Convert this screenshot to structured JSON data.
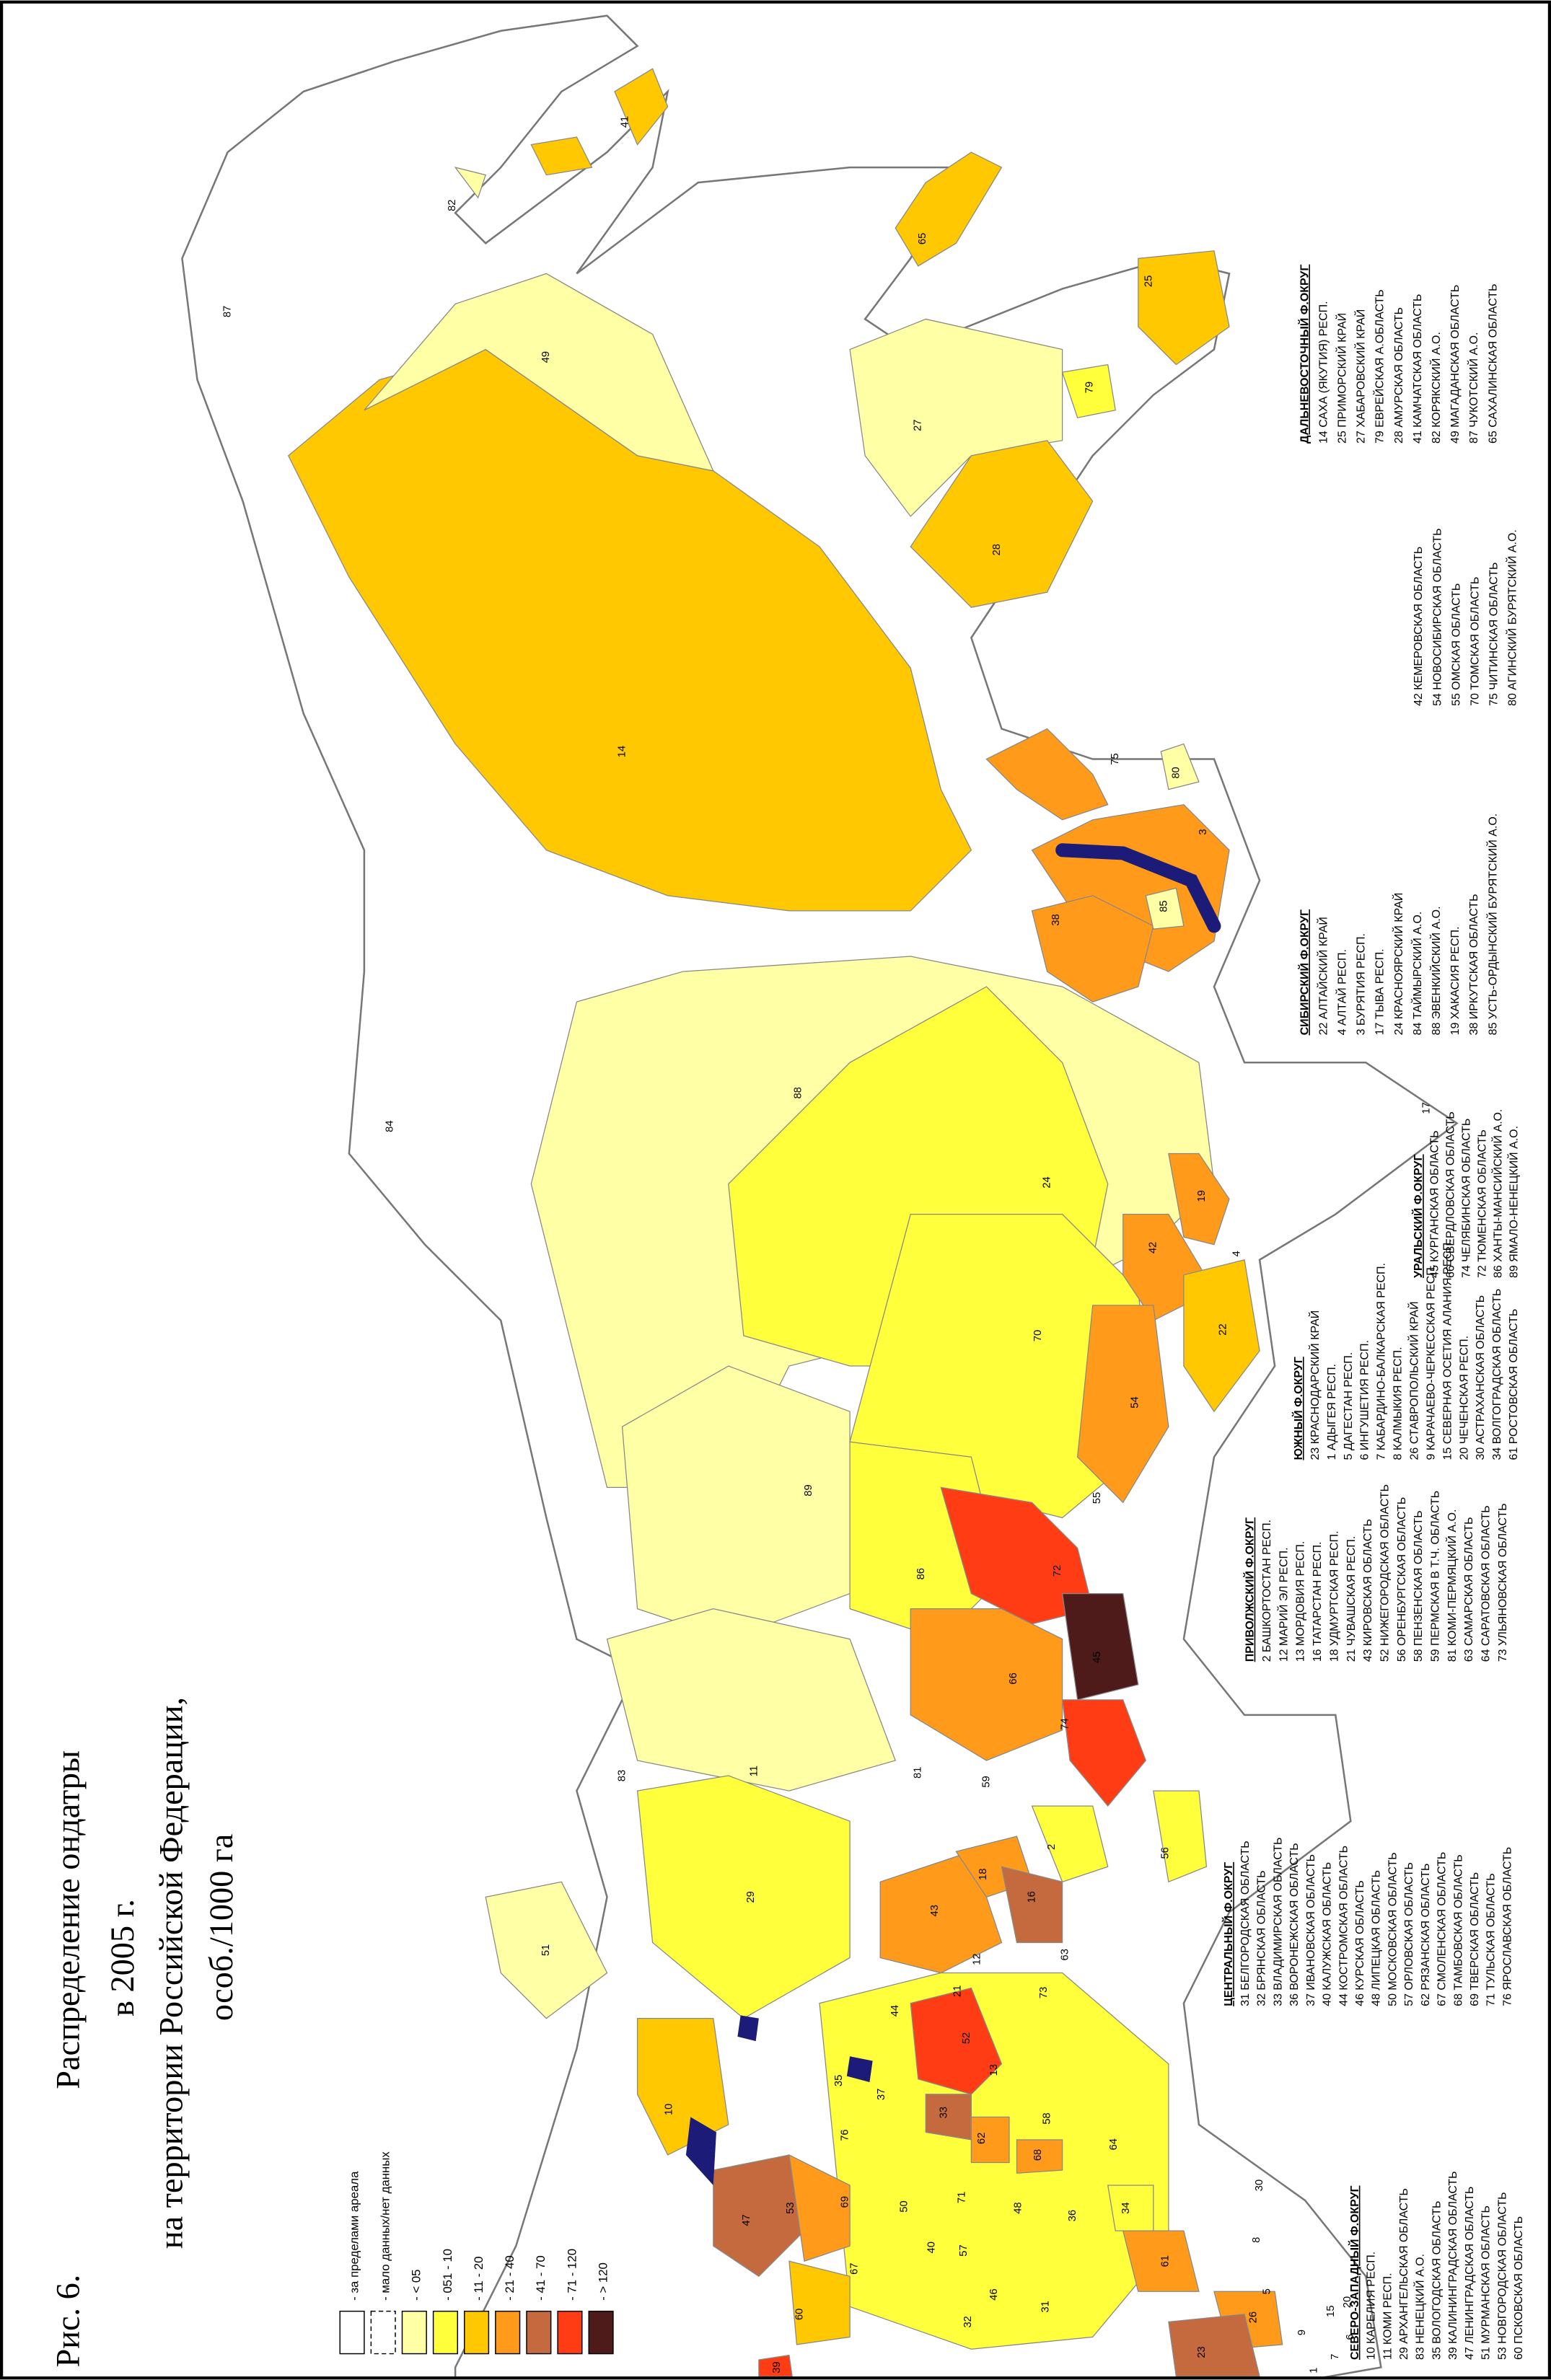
{
  "title": {
    "figure": "Рис. 6.",
    "lines": [
      "Распределение ондатры",
      "в 2005 г.",
      "на территории Российской Федерации,",
      "особ./1000 га"
    ]
  },
  "legend": [
    {
      "label": "- за пределами ареала",
      "color": "#ffffff"
    },
    {
      "label": "- мало данных/нет данных",
      "color": "#ffffff"
    },
    {
      "label": "- < 05",
      "color": "#ffffa6"
    },
    {
      "label": "- 051 - 10",
      "color": "#ffff3c"
    },
    {
      "label": "- 11 - 20",
      "color": "#ffc800"
    },
    {
      "label": "- 21 - 40",
      "color": "#ff9a1a"
    },
    {
      "label": "- 41 - 70",
      "color": "#c46a3e"
    },
    {
      "label": "- 71 - 120",
      "color": "#ff3c14"
    },
    {
      "label": "- > 120",
      "color": "#4e1a1a"
    }
  ],
  "districts": [
    {
      "title": "СЕВЕРО-ЗАПАДНЫЙ Ф.ОКРУГ",
      "regions": [
        "10 КАРЕЛИЯ РЕСП.",
        "11 КОМИ РЕСП.",
        "29 АРХАНГЕЛЬСКАЯ ОБЛАСТЬ",
        "83 НЕНЕЦКИЙ А.О.",
        "35 ВОЛОГОДСКАЯ ОБЛАСТЬ",
        "39 КАЛИНИНГРАДСКАЯ ОБЛАСТЬ",
        "47 ЛЕНИНГРАДСКАЯ ОБЛАСТЬ",
        "51 МУРМАНСКАЯ ОБЛАСТЬ",
        "53 НОВГОРОДСКАЯ ОБЛАСТЬ",
        "60 ПСКОВСКАЯ ОБЛАСТЬ"
      ]
    },
    {
      "title": "ЦЕНТРАЛЬНЫЙ Ф.ОКРУГ",
      "regions": [
        "31 БЕЛГОРОДСКАЯ ОБЛАСТЬ",
        "32 БРЯНСКАЯ ОБЛАСТЬ",
        "33 ВЛАДИМИРСКАЯ ОБЛАСТЬ",
        "36 ВОРОНЕЖСКАЯ ОБЛАСТЬ",
        "37 ИВАНОВСКАЯ ОБЛАСТЬ",
        "40 КАЛУЖСКАЯ ОБЛАСТЬ",
        "44 КОСТРОМСКАЯ ОБЛАСТЬ",
        "46 КУРСКАЯ ОБЛАСТЬ",
        "48 ЛИПЕЦКАЯ ОБЛАСТЬ",
        "50 МОСКОВСКАЯ ОБЛАСТЬ",
        "57 ОРЛОВСКАЯ ОБЛАСТЬ",
        "62 РЯЗАНСКАЯ ОБЛАСТЬ",
        "67 СМОЛЕНСКАЯ ОБЛАСТЬ",
        "68 ТАМБОВСКАЯ ОБЛАСТЬ",
        "69 ТВЕРСКАЯ ОБЛАСТЬ",
        "71 ТУЛЬСКАЯ ОБЛАСТЬ",
        "76 ЯРОСЛАВСКАЯ ОБЛАСТЬ"
      ]
    },
    {
      "title": "ПРИВОЛЖСКИЙ Ф.ОКРУГ",
      "regions": [
        "2 БАШКОРТОСТАН РЕСП.",
        "12 МАРИЙ ЭЛ РЕСП.",
        "13 МОРДОВИЯ РЕСП.",
        "16 ТАТАРСТАН РЕСП.",
        "18 УДМУРТСКАЯ РЕСП.",
        "21 ЧУВАШСКАЯ РЕСП.",
        "43 КИРОВСКАЯ ОБЛАСТЬ",
        "52 НИЖЕГОРОДСКАЯ ОБЛАСТЬ",
        "56 ОРЕНБУРГСКАЯ ОБЛАСТЬ",
        "58 ПЕНЗЕНСКАЯ ОБЛАСТЬ",
        "59 ПЕРМСКАЯ В Т.Ч. ОБЛАСТЬ",
        "81 КОМИ-ПЕРМЯЦКИЙ А.О.",
        "63 САМАРСКАЯ ОБЛАСТЬ",
        "64 САРАТОВСКАЯ ОБЛАСТЬ",
        "73 УЛЬЯНОВСКАЯ ОБЛАСТЬ"
      ]
    },
    {
      "title": "ЮЖНЫЙ Ф.ОКРУГ",
      "regions": [
        "23 КРАСНОДАРСКИЙ КРАЙ",
        "1 АДЫГЕЯ РЕСП.",
        "5 ДАГЕСТАН РЕСП.",
        "6 ИНГУШЕТИЯ РЕСП.",
        "7 КАБАРДИНО-БАЛКАРСКАЯ РЕСП.",
        "8 КАЛМЫКИЯ РЕСП.",
        "26 СТАВРОПОЛЬСКИЙ КРАЙ",
        "9 КАРАЧАЕВО-ЧЕРКЕССКАЯ РЕСП.",
        "15 СЕВЕРНАЯ ОСЕТИЯ АЛАНИЯ РЕСП.",
        "20 ЧЕЧЕНСКАЯ РЕСП.",
        "30 АСТРАХАНСКАЯ ОБЛАСТЬ",
        "34 ВОЛГОГРАДСКАЯ ОБЛАСТЬ",
        "61 РОСТОВСКАЯ ОБЛАСТЬ"
      ]
    },
    {
      "title": "УРАЛЬСКИЙ Ф.ОКРУГ",
      "regions": [
        "45 КУРГАНСКАЯ ОБЛАСТЬ",
        "66 СВЕРДЛОВСКАЯ ОБЛАСТЬ",
        "74 ЧЕЛЯБИНСКАЯ ОБЛАСТЬ",
        "72 ТЮМЕНСКАЯ ОБЛАСТЬ",
        "86 ХАНТЫ-МАНСИЙСКИЙ А.О.",
        "89 ЯМАЛО-НЕНЕЦКИЙ А.О."
      ]
    },
    {
      "title": "СИБИРСКИЙ Ф.ОКРУГ",
      "regions": [
        "22 АЛТАЙСКИЙ КРАЙ",
        "4 АЛТАЙ РЕСП.",
        "3 БУРЯТИЯ РЕСП.",
        "17 ТЫВА РЕСП.",
        "24 КРАСНОЯРСКИЙ КРАЙ",
        "84 ТАЙМЫРСКИЙ А.О.",
        "88 ЭВЕНКИЙСКИЙ А.О.",
        "19 ХАКАСИЯ РЕСП.",
        "38 ИРКУТСКАЯ ОБЛАСТЬ",
        "85 УСТЬ-ОРДЫНСКИЙ БУРЯТСКИЙ А.О.",
        "42 КЕМЕРОВСКАЯ ОБЛАСТЬ",
        "54 НОВОСИБИРСКАЯ ОБЛАСТЬ",
        "55 ОМСКАЯ ОБЛАСТЬ",
        "70 ТОМСКАЯ ОБЛАСТЬ",
        "75 ЧИТИНСКАЯ ОБЛАСТЬ",
        "80 АГИНСКИЙ БУРЯТСКИЙ А.О."
      ]
    },
    {
      "title": "ДАЛЬНЕВОСТОЧНЫЙ Ф.ОКРУГ",
      "regions": [
        "14 САХА (ЯКУТИЯ) РЕСП.",
        "25 ПРИМОРСКИЙ КРАЙ",
        "27 ХАБАРОВСКИЙ КРАЙ",
        "79 ЕВРЕЙСКАЯ А.ОБЛАСТЬ",
        "28 АМУРСКАЯ ОБЛАСТЬ",
        "41 КАМЧАТСКАЯ ОБЛАСТЬ",
        "82 КОРЯКСКИЙ А.О.",
        "49 МАГАДАНСКАЯ ОБЛАСТЬ",
        "87 ЧУКОТСКИЙ А.О.",
        "65 САХАЛИНСКАЯ ОБЛАСТЬ"
      ]
    }
  ],
  "map_labels": [
    "87",
    "49",
    "41",
    "82",
    "65",
    "25",
    "27",
    "79",
    "28",
    "14",
    "75",
    "80",
    "3",
    "85",
    "38",
    "17",
    "84",
    "88",
    "24",
    "4",
    "19",
    "42",
    "22",
    "70",
    "54",
    "89",
    "55",
    "86",
    "72",
    "66",
    "45",
    "74",
    "83",
    "11",
    "81",
    "59",
    "2",
    "56",
    "18",
    "43",
    "16",
    "29",
    "51",
    "12",
    "21",
    "63",
    "73",
    "44",
    "52",
    "13",
    "35",
    "10",
    "37",
    "33",
    "58",
    "62",
    "76",
    "47",
    "53",
    "64",
    "68",
    "34",
    "69",
    "50",
    "71",
    "48",
    "36",
    "40",
    "57",
    "67",
    "46",
    "31",
    "32",
    "60",
    "30",
    "8",
    "5",
    "20",
    "61",
    "26",
    "15",
    "7",
    "9",
    "1",
    "23",
    "39",
    "6"
  ]
}
